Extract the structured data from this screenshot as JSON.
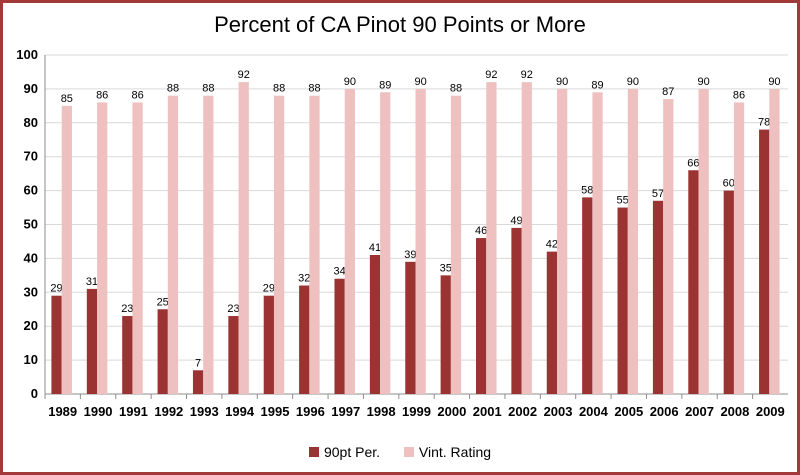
{
  "chart_data": {
    "type": "bar",
    "title": "Percent of CA Pinot 90 Points or More",
    "xlabel": "",
    "ylabel": "",
    "ylim": [
      0,
      100
    ],
    "yticks": [
      0,
      10,
      20,
      30,
      40,
      50,
      60,
      70,
      80,
      90,
      100
    ],
    "grid": true,
    "legend_position": "bottom",
    "categories": [
      "1989",
      "1990",
      "1991",
      "1992",
      "1993",
      "1994",
      "1995",
      "1996",
      "1997",
      "1998",
      "1999",
      "2000",
      "2001",
      "2002",
      "2003",
      "2004",
      "2005",
      "2006",
      "2007",
      "2008",
      "2009"
    ],
    "series": [
      {
        "name": "90pt Per.",
        "color": "#9b3333",
        "values": [
          29,
          31,
          23,
          25,
          7,
          23,
          29,
          32,
          34,
          41,
          39,
          35,
          46,
          49,
          42,
          58,
          55,
          57,
          66,
          60,
          78
        ]
      },
      {
        "name": "Vint. Rating",
        "color": "#efc0c0",
        "values": [
          85,
          86,
          86,
          88,
          88,
          92,
          88,
          88,
          90,
          89,
          90,
          88,
          92,
          92,
          90,
          89,
          90,
          87,
          90,
          86,
          90
        ]
      }
    ]
  }
}
